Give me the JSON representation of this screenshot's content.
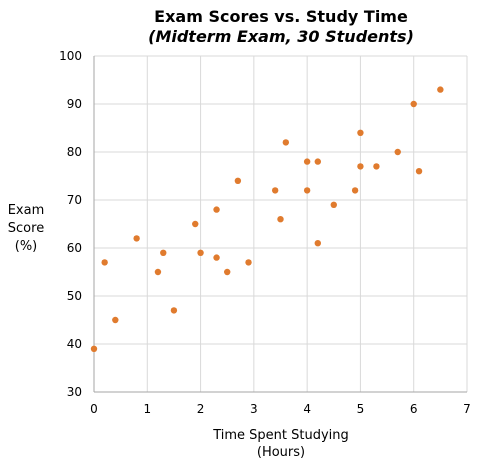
{
  "chart_data": {
    "type": "scatter",
    "title": "Exam Scores vs. Study Time",
    "subtitle": "(Midterm Exam, 30 Students)",
    "xlabel_lines": [
      "Time Spent Studying",
      "(Hours)"
    ],
    "ylabel_lines": [
      "Exam",
      "Score",
      "(%)"
    ],
    "xlim": [
      0,
      7
    ],
    "ylim": [
      30,
      100
    ],
    "x_ticks": [
      0,
      1,
      2,
      3,
      4,
      5,
      6,
      7
    ],
    "y_ticks": [
      30,
      40,
      50,
      60,
      70,
      80,
      90,
      100
    ],
    "x_tick_labels": [
      "0",
      "1",
      "2",
      "3",
      "4",
      "5",
      "6",
      "7"
    ],
    "y_tick_labels": [
      "30",
      "40",
      "50",
      "60",
      "70",
      "80",
      "90",
      "100"
    ],
    "grid": true,
    "legend": "none",
    "marker_color": "#E07B2E",
    "grid_color": "#D9D9D9",
    "axis_color": "#A6A6A6",
    "points": [
      {
        "x": 0.0,
        "y": 39
      },
      {
        "x": 0.2,
        "y": 57
      },
      {
        "x": 0.4,
        "y": 45
      },
      {
        "x": 0.8,
        "y": 62
      },
      {
        "x": 1.2,
        "y": 55
      },
      {
        "x": 1.3,
        "y": 59
      },
      {
        "x": 1.5,
        "y": 47
      },
      {
        "x": 1.9,
        "y": 65
      },
      {
        "x": 2.0,
        "y": 59
      },
      {
        "x": 2.3,
        "y": 68
      },
      {
        "x": 2.3,
        "y": 58
      },
      {
        "x": 2.5,
        "y": 55
      },
      {
        "x": 2.7,
        "y": 74
      },
      {
        "x": 2.9,
        "y": 57
      },
      {
        "x": 3.4,
        "y": 72
      },
      {
        "x": 3.5,
        "y": 66
      },
      {
        "x": 3.6,
        "y": 82
      },
      {
        "x": 4.0,
        "y": 78
      },
      {
        "x": 4.0,
        "y": 72
      },
      {
        "x": 4.2,
        "y": 78
      },
      {
        "x": 4.2,
        "y": 61
      },
      {
        "x": 4.5,
        "y": 69
      },
      {
        "x": 4.9,
        "y": 72
      },
      {
        "x": 5.0,
        "y": 84
      },
      {
        "x": 5.0,
        "y": 77
      },
      {
        "x": 5.3,
        "y": 77
      },
      {
        "x": 5.7,
        "y": 80
      },
      {
        "x": 6.0,
        "y": 90
      },
      {
        "x": 6.1,
        "y": 76
      },
      {
        "x": 6.5,
        "y": 93
      }
    ]
  }
}
